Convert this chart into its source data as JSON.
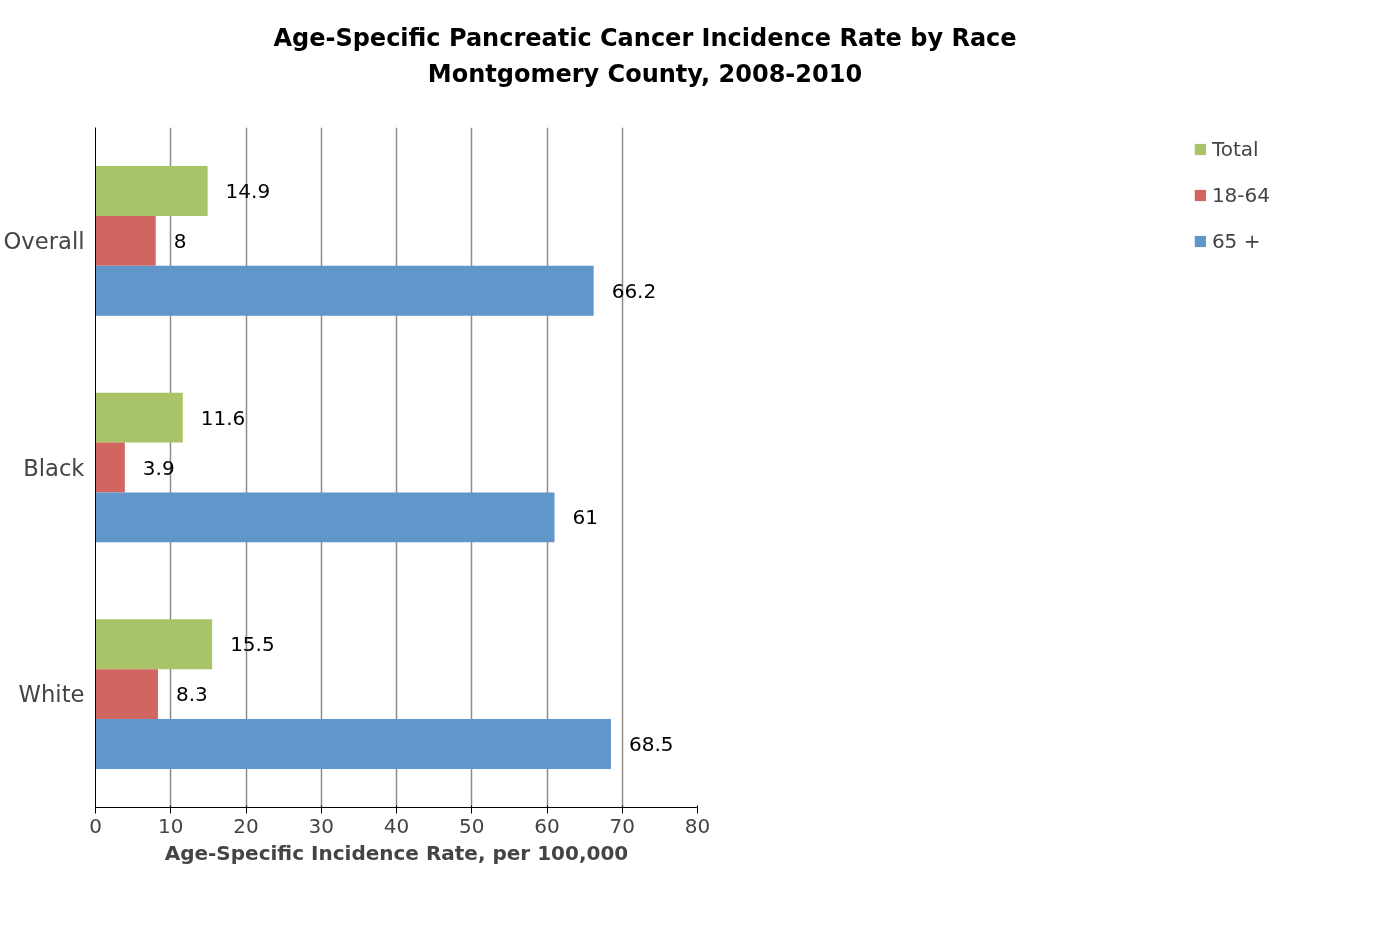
{
  "chart_data": {
    "type": "bar",
    "orientation": "horizontal",
    "title": "Age-Specific Pancreatic Cancer Incidence Rate by Race\nMontgomery County, 2008-2010",
    "xlabel": "Age-Specific Incidence Rate, per 100,000",
    "categories": [
      "Overall",
      "Black",
      "White"
    ],
    "series": [
      {
        "name": "Total",
        "color": "#a9c468",
        "values": [
          14.9,
          11.6,
          15.5
        ]
      },
      {
        "name": "18-64",
        "color": "#d0665f",
        "values": [
          8,
          3.9,
          8.3
        ]
      },
      {
        "name": "65 +",
        "color": "#6096c9",
        "values": [
          66.2,
          61,
          68.5
        ]
      }
    ],
    "xlim": [
      0,
      80
    ],
    "xticks": [
      0,
      10,
      20,
      30,
      40,
      50,
      60,
      70,
      80
    ],
    "grid": "x",
    "legend": "right",
    "data_labels": true
  }
}
